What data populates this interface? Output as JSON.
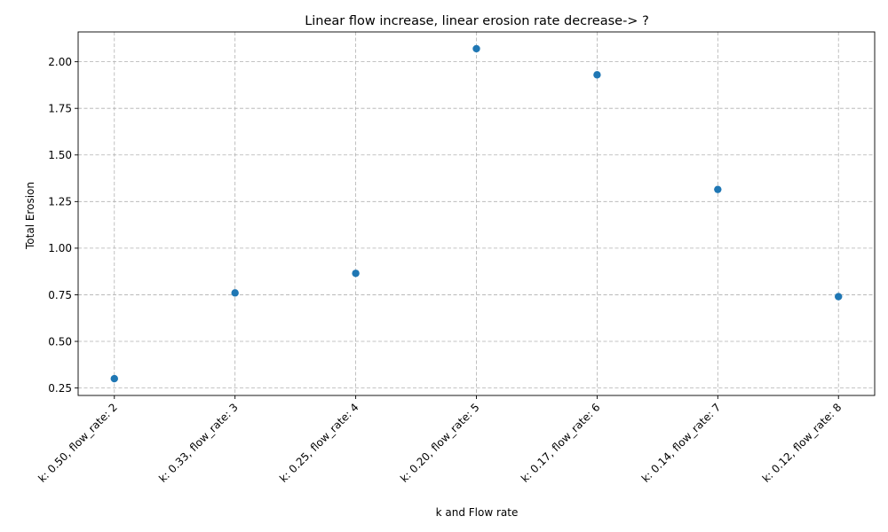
{
  "chart_data": {
    "type": "scatter",
    "title": "Linear flow increase, linear erosion rate decrease-> ?",
    "xlabel": "k and Flow rate",
    "ylabel": "Total Erosion",
    "categories": [
      "k: 0.50, flow_rate: 2",
      "k: 0.33, flow_rate: 3",
      "k: 0.25, flow_rate: 4",
      "k: 0.20, flow_rate: 5",
      "k: 0.17, flow_rate: 6",
      "k: 0.14, flow_rate: 7",
      "k: 0.12, flow_rate: 8"
    ],
    "values": [
      0.3,
      0.76,
      0.865,
      2.07,
      1.93,
      1.315,
      0.74
    ],
    "ylim": [
      0.21,
      2.16
    ],
    "yticks": [
      0.25,
      0.5,
      0.75,
      1.0,
      1.25,
      1.5,
      1.75,
      2.0
    ],
    "ytick_labels": [
      "0.25",
      "0.50",
      "0.75",
      "1.00",
      "1.25",
      "1.50",
      "1.75",
      "2.00"
    ],
    "grid": true,
    "marker_color": "#1f77b4"
  }
}
